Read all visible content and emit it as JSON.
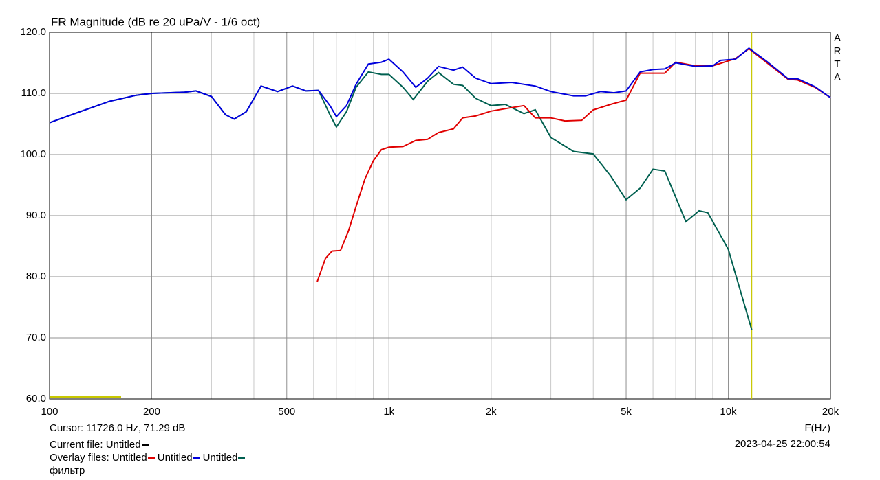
{
  "chart_data": {
    "type": "line",
    "title": "FR Magnitude (dB re 20 uPa/V - 1/6 oct)",
    "xlabel": "F(Hz)",
    "xscale": "log",
    "xlim": [
      100,
      20000
    ],
    "ylim": [
      60,
      120
    ],
    "xticks": [
      100,
      200,
      500,
      {
        "value": 1000,
        "label": "1k"
      },
      {
        "value": 2000,
        "label": "2k"
      },
      {
        "value": 5000,
        "label": "5k"
      },
      {
        "value": 10000,
        "label": "10k"
      },
      {
        "value": 20000,
        "label": "20k"
      }
    ],
    "xminorticks": [
      300,
      400,
      600,
      700,
      800,
      900,
      3000,
      4000,
      6000,
      7000,
      8000,
      9000
    ],
    "yticks": [
      {
        "value": 60,
        "label": "60.0"
      },
      {
        "value": 70,
        "label": "70.0"
      },
      {
        "value": 80,
        "label": "80.0"
      },
      {
        "value": 90,
        "label": "90.0"
      },
      {
        "value": 100,
        "label": "100.0"
      },
      {
        "value": 110,
        "label": "110.0"
      },
      {
        "value": 120,
        "label": "120.0"
      }
    ],
    "grid": true,
    "watermark": "ARTA",
    "cursor": {
      "label": "Cursor: 11726.0 Hz, 71.29 dB",
      "x": 11726,
      "color": "#c8c800"
    },
    "timestamp": "2023-04-25  22:00:54",
    "current_file": {
      "label": "Current file:",
      "name": "Untitled",
      "color": "#000000"
    },
    "overlay_label": "Overlay files:",
    "note": "фильтр",
    "series": [
      {
        "name": "Untitled",
        "color": "#e00000",
        "x": [
          615,
          650,
          680,
          720,
          760,
          800,
          850,
          900,
          950,
          1000,
          1100,
          1200,
          1300,
          1400,
          1550,
          1650,
          1800,
          2000,
          2200,
          2500,
          2700,
          3000,
          3300,
          3700,
          4000,
          4500,
          5000,
          5500,
          6000,
          6500,
          7000,
          8000,
          9000,
          10500,
          11500,
          13000,
          15000,
          16000,
          18000,
          20000
        ],
        "values": [
          79.2,
          83,
          84.2,
          84.3,
          87.5,
          91.5,
          96,
          99,
          100.8,
          101.2,
          101.3,
          102.3,
          102.5,
          103.6,
          104.2,
          106,
          106.3,
          107.1,
          107.5,
          108,
          106,
          106,
          105.5,
          105.6,
          107.3,
          108.2,
          108.9,
          113.3,
          113.3,
          113.3,
          115.1,
          114.5,
          114.5,
          115.7,
          117.3,
          115,
          112.3,
          112.2,
          111,
          109.3
        ]
      },
      {
        "name": "Untitled",
        "color": "#0000dd",
        "x": [
          100,
          120,
          150,
          180,
          200,
          250,
          270,
          300,
          330,
          350,
          380,
          420,
          470,
          520,
          570,
          620,
          670,
          700,
          750,
          800,
          870,
          950,
          1000,
          1100,
          1200,
          1300,
          1400,
          1550,
          1650,
          1800,
          2000,
          2300,
          2700,
          3000,
          3500,
          3800,
          4200,
          4600,
          5000,
          5500,
          6000,
          6500,
          7000,
          8000,
          9000,
          9500,
          10500,
          11500,
          13000,
          15000,
          16000,
          18000,
          20000
        ],
        "values": [
          105.2,
          106.8,
          108.7,
          109.7,
          110,
          110.2,
          110.4,
          109.5,
          106.5,
          105.8,
          107,
          111.2,
          110.3,
          111.2,
          110.4,
          110.5,
          108,
          106.2,
          108,
          111.5,
          114.8,
          115.1,
          115.6,
          113.5,
          111,
          112.5,
          114.4,
          113.8,
          114.3,
          112.5,
          111.6,
          111.8,
          111.2,
          110.3,
          109.6,
          109.6,
          110.3,
          110.1,
          110.4,
          113.5,
          113.9,
          114,
          115,
          114.4,
          114.5,
          115.4,
          115.6,
          117.4,
          115.2,
          112.4,
          112.4,
          111.1,
          109.3
        ]
      },
      {
        "name": "Untitled",
        "color": "#006050",
        "x": [
          100,
          120,
          150,
          180,
          200,
          250,
          270,
          300,
          330,
          350,
          380,
          420,
          470,
          520,
          570,
          620,
          670,
          700,
          750,
          800,
          870,
          950,
          1000,
          1100,
          1180,
          1300,
          1400,
          1550,
          1650,
          1800,
          2000,
          2200,
          2500,
          2700,
          3000,
          3500,
          4000,
          4500,
          5000,
          5500,
          6000,
          6500,
          7000,
          7500,
          8200,
          8700,
          10000,
          11726
        ],
        "values": [
          105.2,
          106.8,
          108.7,
          109.7,
          110,
          110.2,
          110.4,
          109.5,
          106.5,
          105.8,
          107,
          111.2,
          110.3,
          111.2,
          110.4,
          110.5,
          106.5,
          104.5,
          107,
          111,
          113.5,
          113.1,
          113.1,
          111,
          109,
          112,
          113.4,
          111.5,
          111.3,
          109.2,
          108,
          108.2,
          106.7,
          107.3,
          102.8,
          100.5,
          100.1,
          96.5,
          92.6,
          94.5,
          97.6,
          97.3,
          93,
          89,
          90.8,
          90.5,
          84.5,
          71.3
        ]
      }
    ]
  }
}
